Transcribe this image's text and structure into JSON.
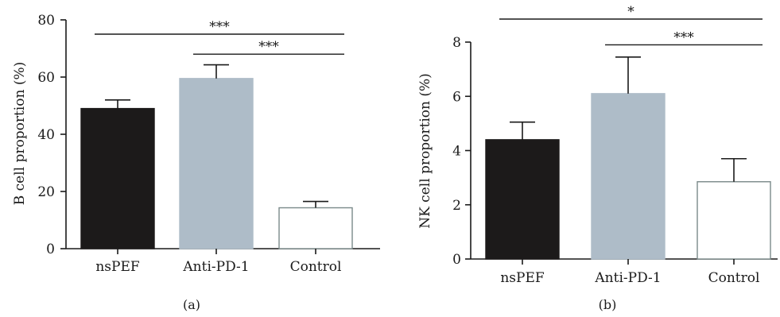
{
  "chart_data": [
    {
      "panel": "(a)",
      "type": "bar",
      "categories": [
        "nsPEF",
        "Anti-PD-1",
        "Control"
      ],
      "values": [
        49,
        59.5,
        14.3
      ],
      "errors": [
        3,
        4.8,
        2.2
      ],
      "bar_fill": [
        "#1c1a1a",
        "#aebcc8",
        "#ffffff"
      ],
      "bar_stroke": [
        "#1c1a1a",
        "#aebcc8",
        "#7a8a8a"
      ],
      "xlabel": "",
      "ylabel": "B cell proportion (%)",
      "ylim": [
        0,
        80
      ],
      "yticks": [
        0,
        20,
        40,
        60,
        80
      ],
      "grid": false,
      "significance": [
        {
          "from": 0,
          "to": 2,
          "label": "***",
          "y": 75
        },
        {
          "from": 1,
          "to": 2,
          "label": "***",
          "y": 68
        }
      ]
    },
    {
      "panel": "(b)",
      "type": "bar",
      "categories": [
        "nsPEF",
        "Anti-PD-1",
        "Control"
      ],
      "values": [
        4.4,
        6.1,
        2.85
      ],
      "errors": [
        0.65,
        1.35,
        0.85
      ],
      "bar_fill": [
        "#1c1a1a",
        "#aebcc8",
        "#ffffff"
      ],
      "bar_stroke": [
        "#1c1a1a",
        "#aebcc8",
        "#7a8a8a"
      ],
      "xlabel": "",
      "ylabel": "NK cell proportion (%)",
      "ylim": [
        0,
        8
      ],
      "yticks": [
        0,
        2,
        4,
        6,
        8
      ],
      "grid": false,
      "significance": [
        {
          "from": 0,
          "to": 2,
          "label": "*",
          "y": 8.85
        },
        {
          "from": 1,
          "to": 2,
          "label": "***",
          "y": 7.9
        }
      ]
    }
  ]
}
